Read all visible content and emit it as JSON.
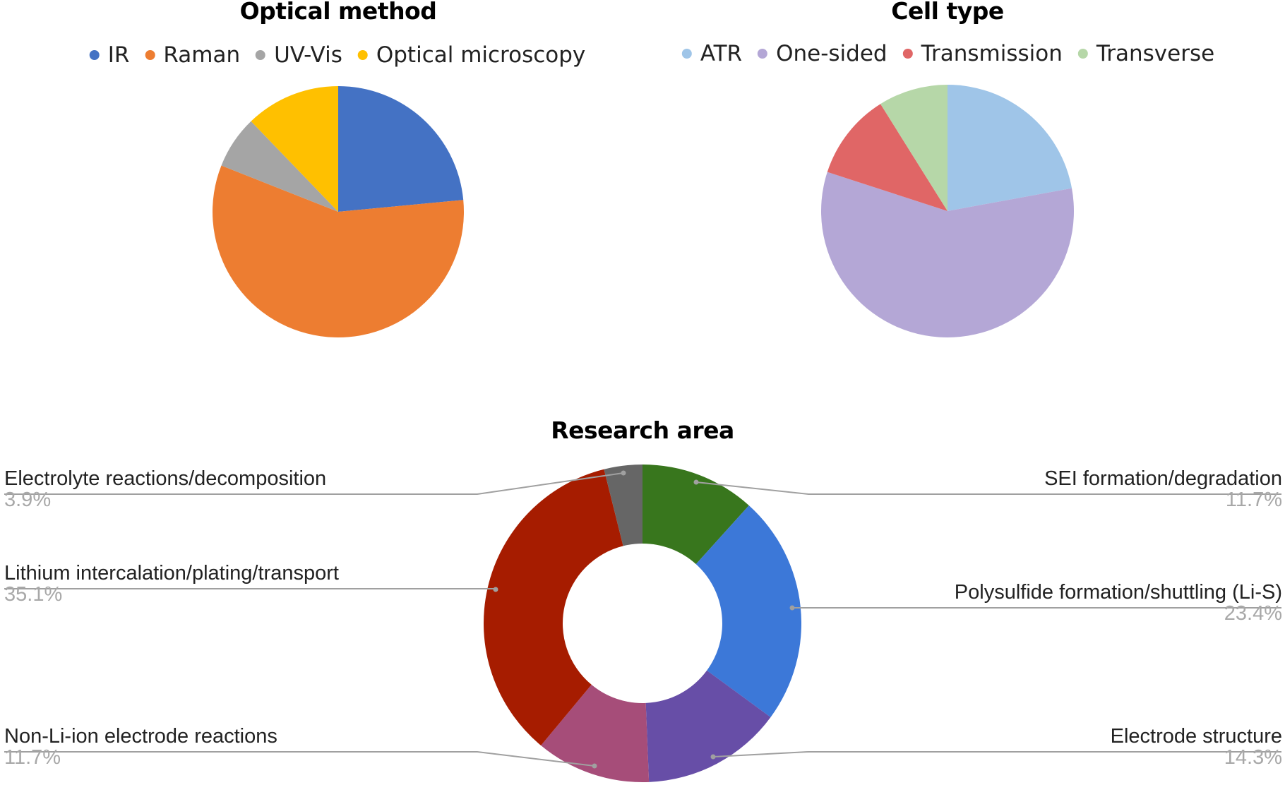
{
  "chart_data": [
    {
      "type": "pie",
      "title": "Optical method",
      "legend_position": "top",
      "categories": [
        "IR",
        "Raman",
        "UV-Vis",
        "Optical microscopy"
      ],
      "values": [
        23.5,
        57.5,
        6.8,
        12.2
      ],
      "colors": [
        "#4472C4",
        "#ED7D31",
        "#A5A5A5",
        "#FFC000"
      ],
      "units": "percent (estimated from slice angles)",
      "start_angle_deg": 0,
      "direction": "clockwise"
    },
    {
      "type": "pie",
      "title": "Cell type",
      "legend_position": "top",
      "categories": [
        "ATR",
        "One-sided",
        "Transmission",
        "Transverse"
      ],
      "values": [
        22.1,
        57.9,
        11.1,
        8.9
      ],
      "colors": [
        "#9FC5E8",
        "#B4A7D6",
        "#E06666",
        "#B6D7A8"
      ],
      "units": "percent (estimated from slice angles)",
      "start_angle_deg": 0,
      "direction": "clockwise"
    },
    {
      "type": "pie",
      "subtype": "donut",
      "title": "Research area",
      "legend_position": "labels",
      "categories": [
        "SEI formation/degradation",
        "Polysulfide formation/shuttling (Li-S)",
        "Electrode structure",
        "Non-Li-ion electrode reactions",
        "Lithium intercalation/plating/transport",
        "Electrolyte reactions/decomposition"
      ],
      "values": [
        11.7,
        23.4,
        14.3,
        11.7,
        35.1,
        3.9
      ],
      "value_labels": [
        "11.7%",
        "23.4%",
        "14.3%",
        "11.7%",
        "35.1%",
        "3.9%"
      ],
      "colors": [
        "#38761D",
        "#3C78D8",
        "#674EA7",
        "#A64D79",
        "#A61C00",
        "#666666"
      ],
      "start_angle_deg": 0,
      "direction": "clockwise"
    }
  ],
  "charts": {
    "optical": {
      "title": "Optical method",
      "legend": [
        {
          "label": "IR",
          "color": "#4472C4"
        },
        {
          "label": "Raman",
          "color": "#ED7D31"
        },
        {
          "label": "UV-Vis",
          "color": "#A5A5A5"
        },
        {
          "label": "Optical microscopy",
          "color": "#FFC000"
        }
      ]
    },
    "cell": {
      "title": "Cell type",
      "legend": [
        {
          "label": "ATR",
          "color": "#9FC5E8"
        },
        {
          "label": "One-sided",
          "color": "#B4A7D6"
        },
        {
          "label": "Transmission",
          "color": "#E06666"
        },
        {
          "label": "Transverse",
          "color": "#B6D7A8"
        }
      ]
    },
    "research": {
      "title": "Research area",
      "labels": [
        {
          "name": "Electrolyte reactions/decomposition",
          "pct": "3.9%"
        },
        {
          "name": "Lithium intercalation/plating/transport",
          "pct": "35.1%"
        },
        {
          "name": "Non-Li-ion electrode reactions",
          "pct": "11.7%"
        },
        {
          "name": "SEI formation/degradation",
          "pct": "11.7%"
        },
        {
          "name": "Polysulfide formation/shuttling (Li-S)",
          "pct": "23.4%"
        },
        {
          "name": "Electrode structure",
          "pct": "14.3%"
        }
      ]
    }
  }
}
